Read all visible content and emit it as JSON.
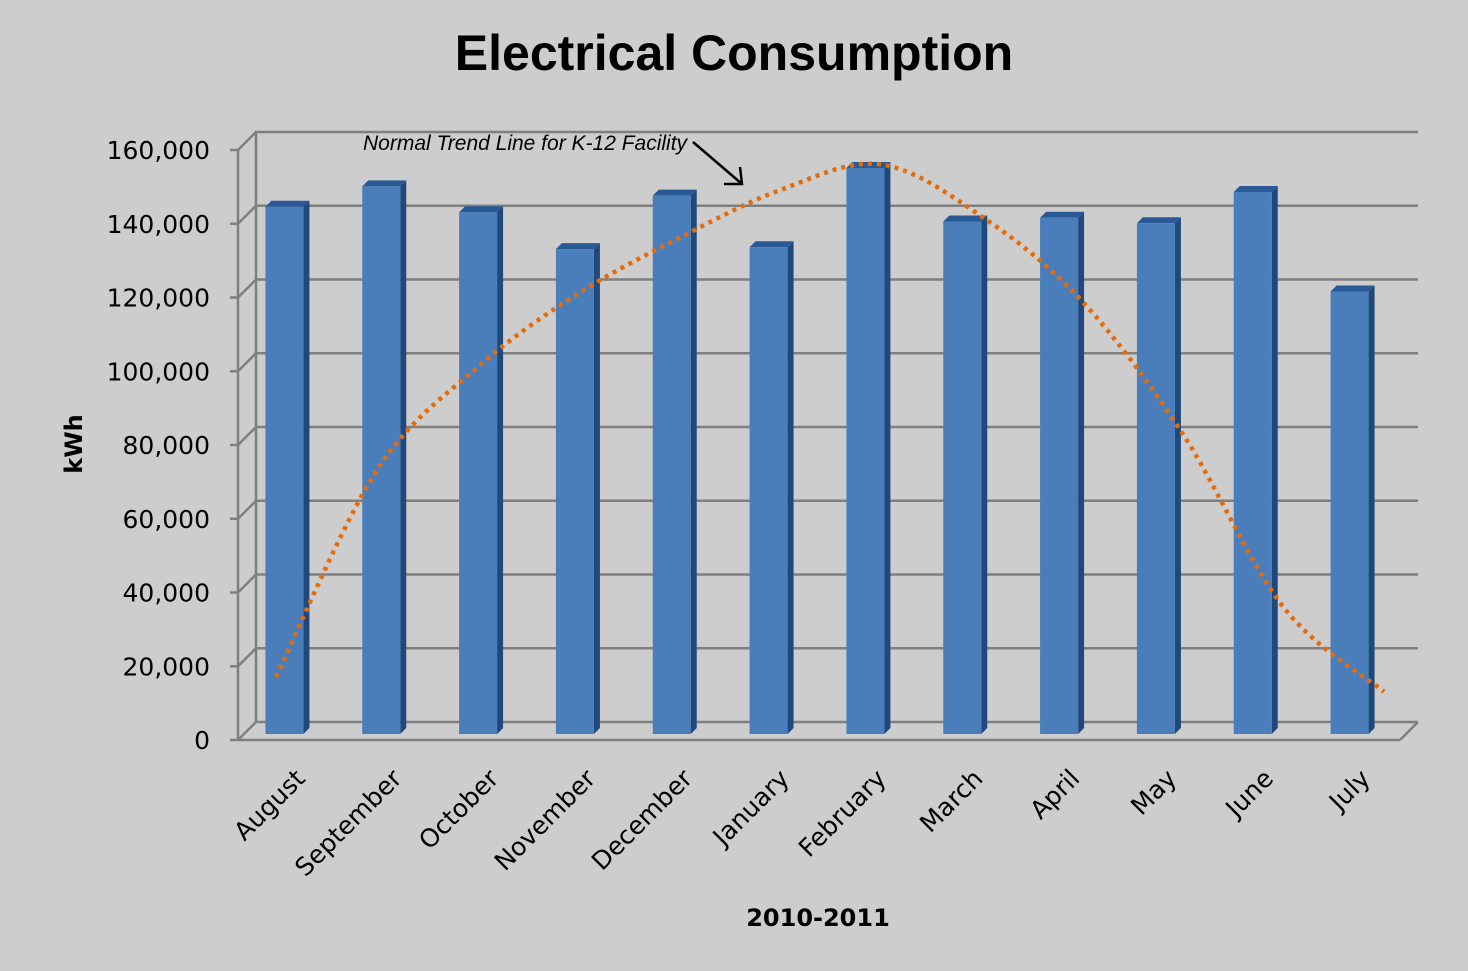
{
  "chart_data": {
    "type": "bar",
    "title": "Electrical Consumption",
    "xlabel": "2010-2011",
    "ylabel": "kWh",
    "ylim": [
      0,
      160000
    ],
    "y_ticks": [
      0,
      20000,
      40000,
      60000,
      80000,
      100000,
      120000,
      140000,
      160000
    ],
    "y_tick_labels": [
      "0",
      "20,000",
      "40,000",
      "60,000",
      "80,000",
      "100,000",
      "120,000",
      "140,000",
      "160,000"
    ],
    "categories": [
      "August",
      "September",
      "October",
      "November",
      "December",
      "January",
      "February",
      "March",
      "April",
      "May",
      "June",
      "July"
    ],
    "series": [
      {
        "values": [
          143000,
          148500,
          141500,
          131500,
          146000,
          132000,
          153500,
          139000,
          140000,
          138500,
          147000,
          120000
        ],
        "color": "#4a7ebb"
      },
      {
        "name": "Normal Trend  Line for K-12 Facility",
        "type": "line",
        "style": "dotted",
        "color": "#e46c0a",
        "values": [
          16000,
          72000,
          100000,
          120000,
          135000,
          148000,
          155000,
          141000,
          118000,
          82000,
          35000,
          12000
        ]
      }
    ],
    "annotations": [
      {
        "text": "Normal Trend  Line for K-12 Facility",
        "points_to": "series.1"
      }
    ],
    "grid": true,
    "legend": "none",
    "three_d": true
  }
}
